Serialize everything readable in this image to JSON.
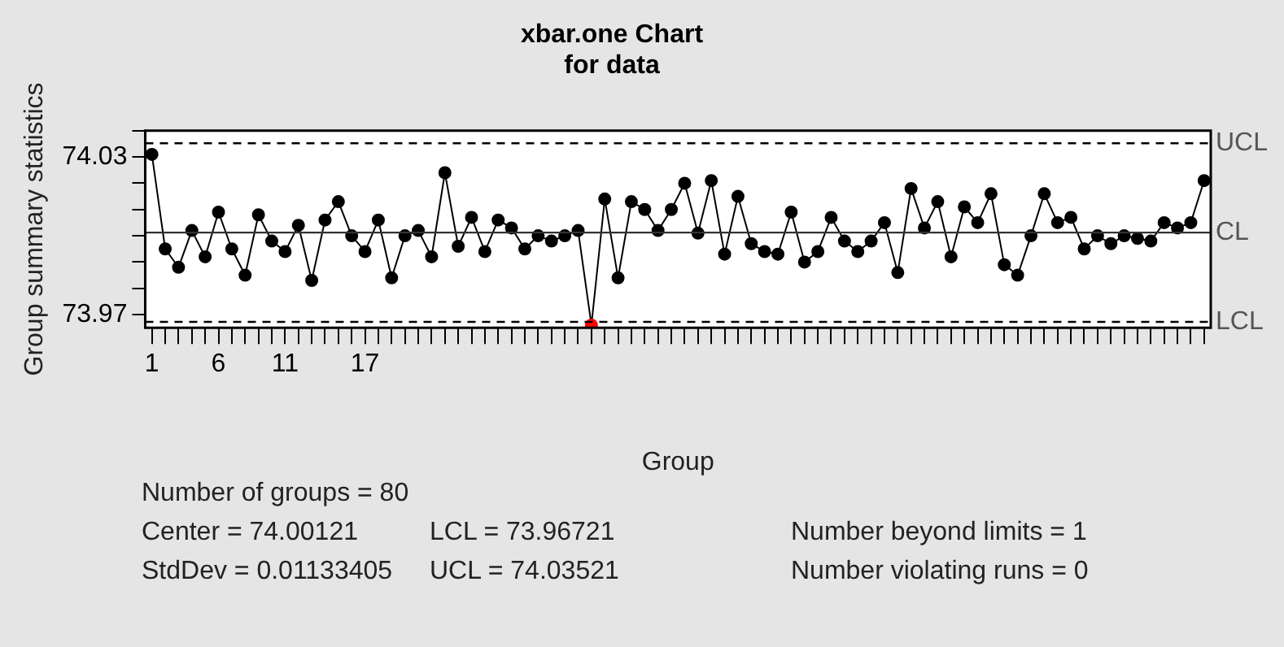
{
  "chart_data": {
    "type": "line",
    "title": "xbar.one Chart\nfor data",
    "xlabel": "Group",
    "ylabel": "Group summary statistics",
    "categories": [
      "1",
      null,
      null,
      null,
      null,
      "6",
      null,
      null,
      null,
      null,
      "11",
      null,
      null,
      null,
      null,
      null,
      "17",
      null,
      null,
      null,
      null,
      null,
      null,
      null,
      null,
      null,
      null,
      null,
      null,
      null,
      null,
      null,
      null,
      null,
      null,
      null,
      null,
      null,
      null,
      null,
      null,
      null,
      null,
      null,
      null,
      null,
      null,
      null,
      null,
      null,
      null,
      null,
      null,
      null,
      null,
      null,
      null,
      null,
      null,
      null,
      null,
      null,
      null,
      null,
      null,
      null,
      null,
      null,
      null,
      null,
      null,
      null,
      null,
      null,
      null,
      null,
      null,
      null,
      null,
      null
    ],
    "values": [
      74.031,
      73.995,
      73.988,
      74.002,
      73.992,
      74.009,
      73.995,
      73.985,
      74.008,
      73.998,
      73.994,
      74.004,
      73.983,
      74.006,
      74.013,
      74.0,
      73.994,
      74.006,
      73.984,
      74.0,
      74.002,
      73.992,
      74.024,
      73.996,
      74.007,
      73.994,
      74.006,
      74.003,
      73.995,
      74.0,
      73.998,
      74.0,
      74.002,
      73.966,
      74.014,
      73.984,
      74.013,
      74.01,
      74.002,
      74.01,
      74.02,
      74.001,
      74.021,
      73.993,
      74.015,
      73.997,
      73.994,
      73.993,
      74.009,
      73.99,
      73.994,
      74.007,
      73.998,
      73.994,
      73.998,
      74.005,
      73.986,
      74.018,
      74.003,
      74.013,
      73.992,
      74.011,
      74.005,
      74.016,
      73.989,
      73.985,
      74.0,
      74.016,
      74.005,
      74.007,
      73.995,
      74.0,
      73.997,
      74.0,
      73.999,
      73.998,
      74.005,
      74.003,
      74.005,
      74.021
    ],
    "colors": [
      "#000000",
      "#000000",
      "#000000",
      "#000000",
      "#000000",
      "#000000",
      "#000000",
      "#000000",
      "#000000",
      "#000000",
      "#000000",
      "#000000",
      "#000000",
      "#000000",
      "#000000",
      "#000000",
      "#000000",
      "#000000",
      "#000000",
      "#000000",
      "#000000",
      "#000000",
      "#000000",
      "#000000",
      "#000000",
      "#000000",
      "#000000",
      "#000000",
      "#000000",
      "#000000",
      "#000000",
      "#000000",
      "#000000",
      "#ff0000",
      "#000000",
      "#000000",
      "#000000",
      "#000000",
      "#000000",
      "#000000",
      "#000000",
      "#000000",
      "#000000",
      "#000000",
      "#000000",
      "#000000",
      "#000000",
      "#000000",
      "#000000",
      "#000000",
      "#000000",
      "#000000",
      "#000000",
      "#000000",
      "#000000",
      "#000000",
      "#000000",
      "#000000",
      "#000000",
      "#000000",
      "#000000",
      "#000000",
      "#000000",
      "#000000",
      "#000000",
      "#000000",
      "#000000",
      "#000000",
      "#000000",
      "#000000",
      "#000000",
      "#000000",
      "#000000",
      "#000000",
      "#000000",
      "#000000",
      "#000000",
      "#000000",
      "#000000",
      "#000000"
    ],
    "ylim": [
      73.965,
      74.04
    ],
    "yticks": [
      73.97,
      {
        "value": 73.98,
        "label": null
      },
      {
        "value": 73.99,
        "label": null
      },
      {
        "value": 74.0,
        "label": null
      },
      {
        "value": 74.01,
        "label": null
      },
      {
        "value": 74.02,
        "label": null
      },
      74.03,
      {
        "value": 74.04,
        "label": null
      }
    ],
    "ref_lines": [
      {
        "axis": "y",
        "value": 74.03521,
        "label": "UCL",
        "color": "#000000",
        "line_style": "dashed"
      },
      {
        "axis": "y",
        "value": 74.00121,
        "label": "CL",
        "color": "#333333",
        "line_style": "solid"
      },
      {
        "axis": "y",
        "value": 73.96721,
        "label": "LCL",
        "color": "#000000",
        "line_style": "dashed"
      }
    ],
    "marker": "circle",
    "line_style": "solid",
    "legend": false,
    "annotations": [
      "Number of groups = 80",
      "Center = 74.00121",
      "LCL = 73.96721",
      "Number beyond limits = 1",
      "StdDev = 0.01133405",
      "UCL = 74.03521",
      "Number violating runs = 0"
    ]
  }
}
